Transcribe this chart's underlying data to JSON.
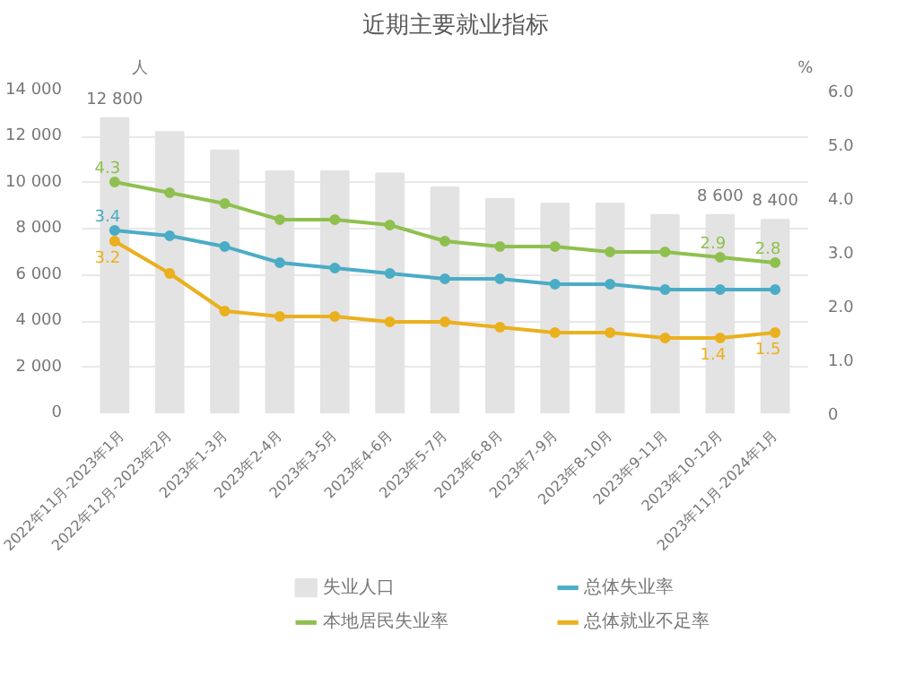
{
  "chart_data": {
    "type": "bar",
    "title": "近期主要就业指标",
    "ylabel": "人",
    "y2label": "%",
    "categories": [
      "2022年11月-2023年1月",
      "2022年12月-2023年2月",
      "2023年1-3月",
      "2023年2-4月",
      "2023年3-5月",
      "2023年4-6月",
      "2023年5-7月",
      "2023年6-8月",
      "2023年7-9月",
      "2023年8-10月",
      "2023年9-11月",
      "2023年10-12月",
      "2023年11月-2024年1月"
    ],
    "series": [
      {
        "name": "失业人口",
        "color": "#e3e3e3",
        "values": [
          12800,
          12200,
          11400,
          10500,
          10500,
          10400,
          9800,
          9300,
          9100,
          9100,
          8600,
          8600,
          8400
        ],
        "value_labels": [
          "12 800",
          null,
          null,
          null,
          null,
          null,
          null,
          null,
          null,
          null,
          null,
          "8 600",
          "8 400"
        ]
      },
      {
        "name": "总体失业率",
        "type": "line",
        "axis": "y2",
        "color": "#4bacc6",
        "values": [
          3.4,
          3.3,
          3.1,
          2.8,
          2.7,
          2.6,
          2.5,
          2.5,
          2.4,
          2.4,
          2.3,
          2.3,
          2.3
        ],
        "value_labels": [
          "3.4",
          null,
          null,
          null,
          null,
          null,
          null,
          null,
          null,
          null,
          null,
          null,
          null
        ]
      },
      {
        "name": "本地居民失业率",
        "type": "line",
        "axis": "y2",
        "color": "#8fc04f",
        "values": [
          4.3,
          4.1,
          3.9,
          3.6,
          3.6,
          3.5,
          3.2,
          3.1,
          3.1,
          3.0,
          3.0,
          2.9,
          2.8
        ],
        "value_labels": [
          "4.3",
          null,
          null,
          null,
          null,
          null,
          null,
          null,
          null,
          null,
          null,
          "2.9",
          "2.8"
        ]
      },
      {
        "name": "总体就业不足率",
        "type": "line",
        "axis": "y2",
        "color": "#eab01e",
        "values": [
          3.2,
          2.6,
          1.9,
          1.8,
          1.8,
          1.7,
          1.7,
          1.6,
          1.5,
          1.5,
          1.4,
          1.4,
          1.5
        ],
        "value_labels": [
          "3.2",
          null,
          null,
          null,
          null,
          null,
          null,
          null,
          null,
          null,
          null,
          "1.4",
          "1.5"
        ]
      }
    ],
    "ylim": [
      0,
      14000
    ],
    "yticks": [
      0,
      {
        "value": 2000,
        "label": "2 000"
      },
      {
        "value": 4000,
        "label": "4 000"
      },
      {
        "value": 6000,
        "label": "6 000"
      },
      {
        "value": 8000,
        "label": "8 000"
      },
      {
        "value": 10000,
        "label": "10 000"
      },
      {
        "value": 12000,
        "label": "12 000"
      },
      {
        "value": 14000,
        "label": "14 000"
      }
    ],
    "y2lim": [
      0,
      6
    ],
    "y2ticks": [
      0,
      {
        "value": 1,
        "label": "1.0"
      },
      {
        "value": 2,
        "label": "2.0"
      },
      {
        "value": 3,
        "label": "3.0"
      },
      {
        "value": 4,
        "label": "4.0"
      },
      {
        "value": 5,
        "label": "5.0"
      },
      {
        "value": 6,
        "label": "6.0"
      }
    ],
    "grid": "y",
    "legend": "bottom",
    "marker": "circle"
  }
}
